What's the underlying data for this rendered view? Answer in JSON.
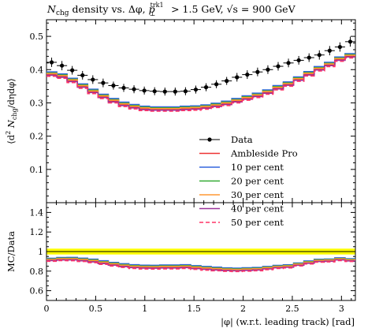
{
  "chart_data": {
    "type": "line",
    "title": "N_chg density vs. Δφ, p⊥^trk1 > 1.5 GeV, √s = 900 GeV",
    "title_parts": {
      "n": "N",
      "n_sub": "chg",
      "mid": " density vs. Δφ, ",
      "p": "p",
      "p_sub": "⊥",
      "p_sup": "trk1",
      "cut": " > 1.5 GeV, √s = 900 GeV"
    },
    "ylabel": "⟨d²N_chg/dηdφ⟩",
    "ylabel_parts": {
      "a": "⟨d",
      "a_sup": "2",
      "b": " N",
      "b_sub": "chg",
      "c": "/dηdφ⟩"
    },
    "ratio_ylabel": "MC/Data",
    "xlabel": "|φ| (w.r.t. leading track) [rad]",
    "xlim": [
      0,
      3.1416
    ],
    "ylim": [
      0.0,
      0.55
    ],
    "ratio_ylim": [
      0.5,
      1.5
    ],
    "x_ticks": [
      0,
      0.5,
      1,
      1.5,
      2,
      2.5,
      3
    ],
    "x_tick_labels": [
      "0",
      "0.5",
      "1",
      "1.5",
      "2",
      "2.5",
      "3"
    ],
    "y_ticks": [
      0.1,
      0.2,
      0.3,
      0.4,
      0.5
    ],
    "y_tick_labels": [
      "0.1",
      "0.2",
      "0.3",
      "0.4",
      "0.5"
    ],
    "ratio_y_ticks": [
      0.6,
      0.8,
      1.0,
      1.2,
      1.4
    ],
    "ratio_y_tick_labels": [
      "0.6",
      "0.8",
      "1",
      "1.2",
      "1.4"
    ],
    "band": {
      "lo": 0.97,
      "hi": 1.03,
      "color": "#ffff00"
    },
    "x": [
      0.0524,
      0.1571,
      0.2618,
      0.3665,
      0.4712,
      0.576,
      0.6807,
      0.7854,
      0.8901,
      0.9948,
      1.0996,
      1.2043,
      1.309,
      1.4137,
      1.5184,
      1.6232,
      1.7279,
      1.8326,
      1.9373,
      2.042,
      2.1468,
      2.2515,
      2.3562,
      2.4609,
      2.5656,
      2.6704,
      2.7751,
      2.8798,
      2.9845,
      3.0892
    ],
    "series": [
      {
        "name": "Data",
        "color": "#000000",
        "values": [
          0.422,
          0.412,
          0.398,
          0.383,
          0.37,
          0.36,
          0.352,
          0.345,
          0.341,
          0.337,
          0.335,
          0.334,
          0.334,
          0.335,
          0.34,
          0.347,
          0.356,
          0.366,
          0.377,
          0.385,
          0.393,
          0.4,
          0.41,
          0.42,
          0.428,
          0.436,
          0.444,
          0.457,
          0.468,
          0.484
        ],
        "errors": [
          0.014,
          0.014,
          0.013,
          0.013,
          0.013,
          0.013,
          0.012,
          0.012,
          0.012,
          0.012,
          0.012,
          0.012,
          0.012,
          0.012,
          0.012,
          0.012,
          0.012,
          0.012,
          0.013,
          0.013,
          0.013,
          0.013,
          0.013,
          0.013,
          0.013,
          0.013,
          0.014,
          0.014,
          0.014,
          0.015
        ]
      },
      {
        "name": "Ambleside Pro",
        "color": "#ee3333",
        "values": [
          0.385,
          0.379,
          0.366,
          0.349,
          0.333,
          0.318,
          0.305,
          0.294,
          0.287,
          0.282,
          0.28,
          0.28,
          0.28,
          0.282,
          0.283,
          0.286,
          0.291,
          0.297,
          0.305,
          0.313,
          0.321,
          0.331,
          0.344,
          0.355,
          0.37,
          0.386,
          0.401,
          0.414,
          0.43,
          0.44
        ]
      },
      {
        "name": "10 per cent",
        "color": "#3366dd",
        "values": [
          0.393,
          0.387,
          0.374,
          0.357,
          0.341,
          0.326,
          0.313,
          0.302,
          0.295,
          0.29,
          0.288,
          0.288,
          0.288,
          0.29,
          0.291,
          0.294,
          0.299,
          0.305,
          0.313,
          0.321,
          0.329,
          0.339,
          0.352,
          0.363,
          0.378,
          0.394,
          0.409,
          0.422,
          0.438,
          0.448
        ]
      },
      {
        "name": "20 per cent",
        "color": "#33aa33",
        "values": [
          0.39,
          0.384,
          0.371,
          0.354,
          0.338,
          0.323,
          0.31,
          0.299,
          0.292,
          0.287,
          0.285,
          0.285,
          0.285,
          0.287,
          0.288,
          0.291,
          0.296,
          0.302,
          0.31,
          0.318,
          0.326,
          0.336,
          0.349,
          0.36,
          0.375,
          0.391,
          0.406,
          0.419,
          0.435,
          0.445
        ]
      },
      {
        "name": "30 per cent",
        "color": "#ff9933",
        "values": [
          0.388,
          0.382,
          0.369,
          0.352,
          0.336,
          0.321,
          0.308,
          0.297,
          0.29,
          0.285,
          0.283,
          0.283,
          0.283,
          0.285,
          0.286,
          0.289,
          0.294,
          0.3,
          0.308,
          0.316,
          0.324,
          0.334,
          0.347,
          0.358,
          0.373,
          0.389,
          0.404,
          0.417,
          0.433,
          0.443
        ]
      },
      {
        "name": "40 per cent",
        "color": "#993399",
        "values": [
          0.383,
          0.377,
          0.364,
          0.347,
          0.331,
          0.316,
          0.303,
          0.292,
          0.285,
          0.28,
          0.278,
          0.278,
          0.278,
          0.28,
          0.281,
          0.284,
          0.289,
          0.295,
          0.303,
          0.311,
          0.319,
          0.329,
          0.342,
          0.353,
          0.368,
          0.384,
          0.399,
          0.412,
          0.428,
          0.438
        ]
      },
      {
        "name": "50 per cent",
        "color": "#ff3366",
        "dashed": true,
        "values": [
          0.38,
          0.374,
          0.361,
          0.344,
          0.328,
          0.313,
          0.3,
          0.289,
          0.282,
          0.277,
          0.275,
          0.275,
          0.275,
          0.277,
          0.278,
          0.281,
          0.286,
          0.292,
          0.3,
          0.308,
          0.316,
          0.326,
          0.339,
          0.35,
          0.365,
          0.381,
          0.396,
          0.409,
          0.425,
          0.435
        ]
      }
    ],
    "legend_placement": "right"
  }
}
